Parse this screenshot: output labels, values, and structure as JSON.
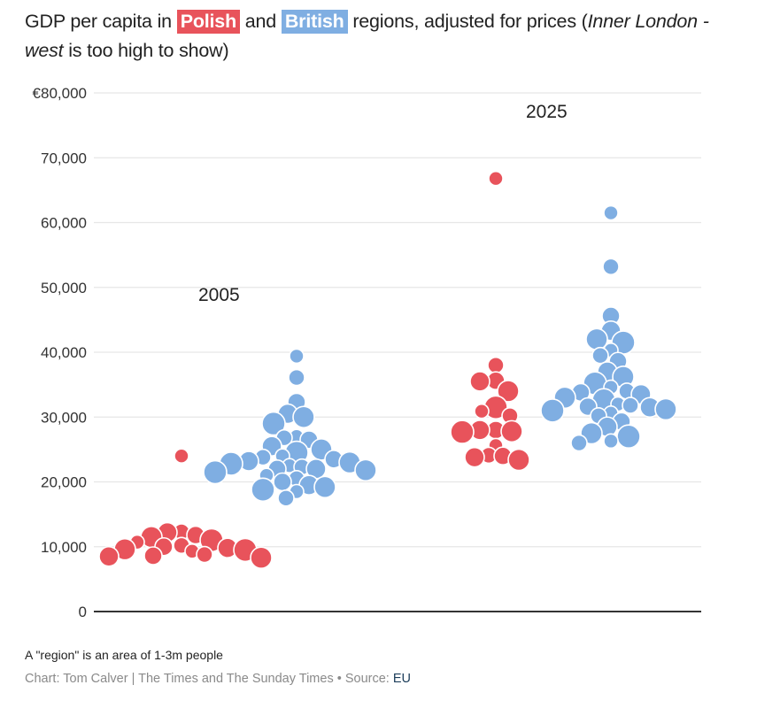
{
  "title": {
    "prefix": "GDP per capita in",
    "polish_label": "Polish",
    "and": "and",
    "british_label": "British",
    "suffix": "regions, adjusted for prices (",
    "italic_1": "Inner London - west",
    "suffix_2": " is too high to show)"
  },
  "colors": {
    "polish": "#e8535b",
    "british": "#7faee2"
  },
  "footer": {
    "note": "A \"region\" is an area of 1-3m people",
    "credit": "Chart: Tom Calver | The Times and The Sunday Times • Source: ",
    "source_link": "EU"
  },
  "chart_data": {
    "type": "scatter",
    "subtype": "beeswarm",
    "title": "GDP per capita in Polish and British regions, adjusted for prices (Inner London - west is too high to show)",
    "xlabel": "",
    "ylabel": "GDP per capita (€)",
    "ylim": [
      0,
      80000
    ],
    "yticks": [
      0,
      10000,
      20000,
      30000,
      40000,
      50000,
      60000,
      70000,
      80000
    ],
    "ytick_labels": [
      "0",
      "10,000",
      "20,000",
      "30,000",
      "40,000",
      "50,000",
      "60,000",
      "70,000",
      "€80,000"
    ],
    "grid": true,
    "legend": "inline-title",
    "groups": [
      {
        "year_label": "2005",
        "show_label": true,
        "series": "Polish",
        "values": [
          24000,
          12300,
          11800,
          12200,
          11500,
          11000,
          10700,
          10200,
          10000,
          9800,
          9600,
          9500,
          9300,
          8800,
          8600,
          8500,
          8300
        ]
      },
      {
        "year_label": "2005",
        "show_label": false,
        "series": "British",
        "values": [
          39400,
          36100,
          32300,
          30500,
          30000,
          29000,
          27000,
          26800,
          26500,
          25500,
          25000,
          24500,
          24000,
          23800,
          23500,
          23200,
          23000,
          22800,
          22500,
          22300,
          22000,
          22000,
          21800,
          21500,
          21000,
          20500,
          20000,
          19500,
          19200,
          18800,
          18500,
          17500
        ]
      },
      {
        "year_label": "2025",
        "show_label": true,
        "series": "Polish",
        "values": [
          66800,
          38000,
          35600,
          35500,
          34000,
          31500,
          30900,
          30200,
          28000,
          28000,
          27800,
          27700,
          25600,
          24100,
          24000,
          23800,
          23400
        ]
      },
      {
        "year_label": "2025",
        "show_label": false,
        "series": "British",
        "values": [
          61500,
          53200,
          45600,
          43300,
          42000,
          41500,
          40300,
          39500,
          38600,
          37000,
          36200,
          35200,
          34600,
          34000,
          33800,
          33500,
          33000,
          32600,
          32000,
          31800,
          31600,
          31500,
          31200,
          31000,
          30600,
          30200,
          29300,
          28500,
          27500,
          27000,
          26300,
          26000
        ]
      }
    ]
  }
}
